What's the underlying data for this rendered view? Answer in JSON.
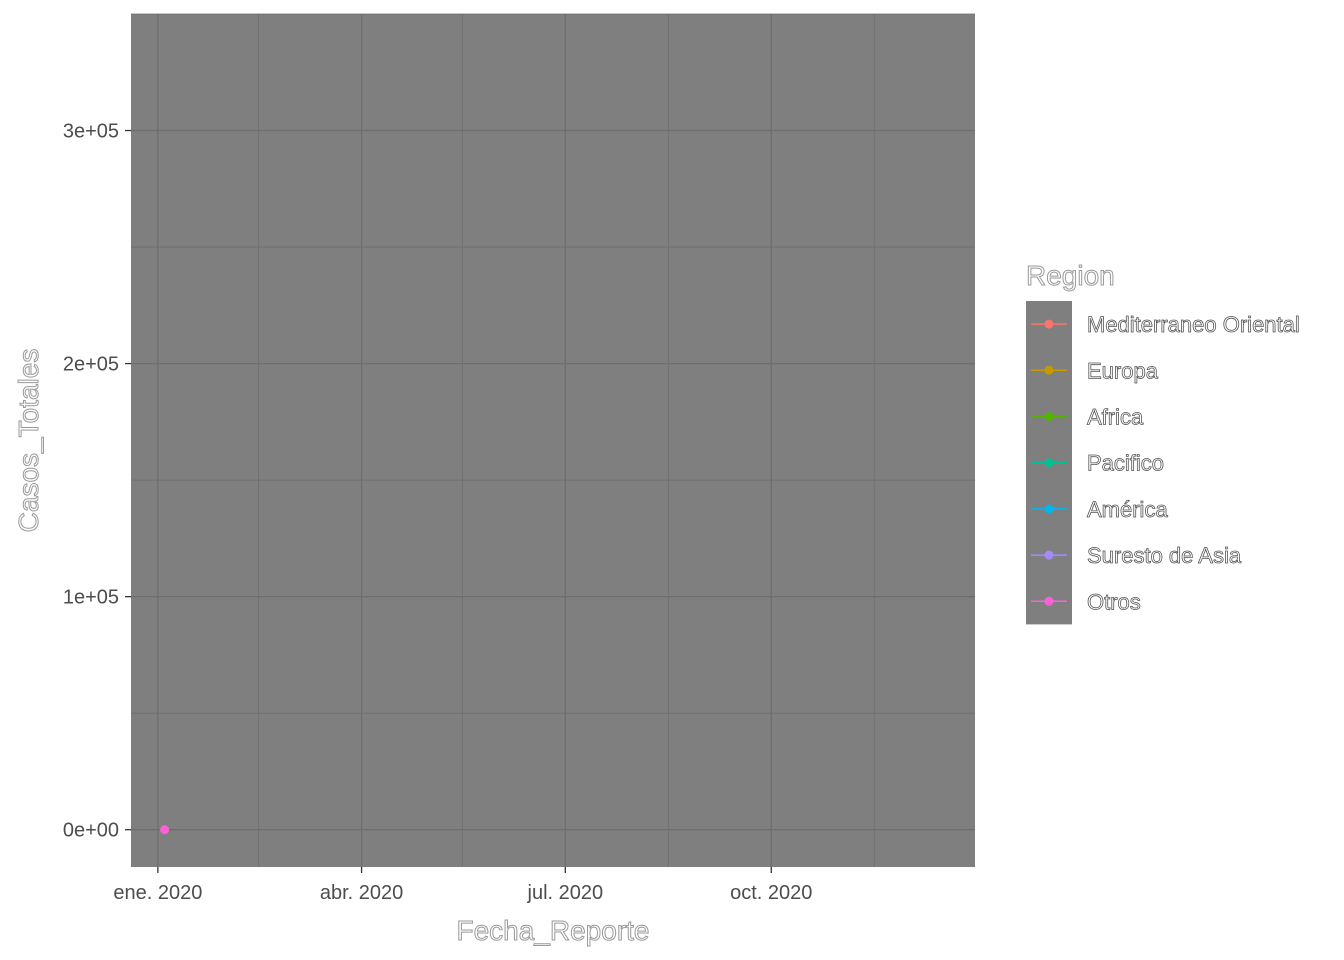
{
  "chart_data": {
    "type": "line",
    "xlabel": "Fecha_Reporte",
    "ylabel": "Casos_Totales",
    "x_axis": {
      "kind": "date",
      "range": [
        "2019-12-20",
        "2020-12-31"
      ],
      "ticks": [
        {
          "date": "2020-01-01",
          "label": "ene. 2020"
        },
        {
          "date": "2020-04-01",
          "label": "abr. 2020"
        },
        {
          "date": "2020-07-01",
          "label": "jul. 2020"
        },
        {
          "date": "2020-10-01",
          "label": "oct. 2020"
        }
      ],
      "minor_ticks": [
        "2020-02-15",
        "2020-05-16",
        "2020-08-16",
        "2020-11-16"
      ]
    },
    "y_axis": {
      "range": [
        -16000,
        350000
      ],
      "ticks": [
        {
          "value": 0,
          "label": "0e+00"
        },
        {
          "value": 100000,
          "label": "1e+05"
        },
        {
          "value": 200000,
          "label": "2e+05"
        },
        {
          "value": 300000,
          "label": "3e+05"
        }
      ],
      "minor_ticks": [
        50000,
        150000,
        250000,
        350000
      ]
    },
    "grid": true,
    "legend": {
      "title": "Region",
      "placement": "right"
    },
    "series": [
      {
        "name": "Mediterraneo Oriental",
        "color": "#F8766D",
        "points": []
      },
      {
        "name": "Europa",
        "color": "#C49A00",
        "points": []
      },
      {
        "name": "Africa",
        "color": "#53B400",
        "points": []
      },
      {
        "name": "Pacifico",
        "color": "#00C094",
        "points": []
      },
      {
        "name": "América",
        "color": "#00B6EB",
        "points": []
      },
      {
        "name": "Suresto de Asia",
        "color": "#A58AFF",
        "points": []
      },
      {
        "name": "Otros",
        "color": "#FB61D7",
        "points": [
          {
            "x": "2020-01-04",
            "y": 0
          }
        ]
      }
    ],
    "colors": {
      "panel_background": "#7f7f7f",
      "grid_line": "#6e6e6e"
    }
  }
}
